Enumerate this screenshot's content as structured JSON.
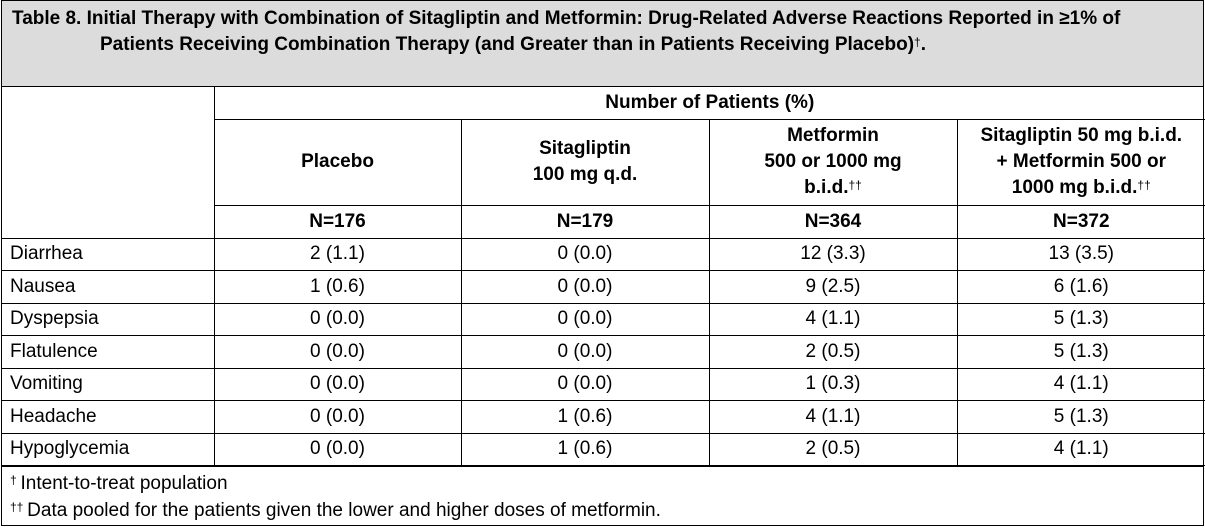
{
  "title": {
    "label": "Table 8.",
    "text": "Initial Therapy with Combination of Sitagliptin and Metformin: Drug-Related Adverse Reactions Reported in ≥1% of Patients Receiving Combination Therapy (and Greater than in Patients Receiving Placebo)",
    "mark": "†",
    "end": "."
  },
  "group_header": "Number of Patients (%)",
  "columns": [
    {
      "lines": [
        "Placebo"
      ],
      "n": "N=176"
    },
    {
      "lines": [
        "Sitagliptin",
        "100 mg q.d."
      ],
      "n": "N=179"
    },
    {
      "lines": [
        "Metformin",
        "500 or 1000 mg",
        "b.i.d."
      ],
      "mark": "††",
      "n": "N=364"
    },
    {
      "lines": [
        "Sitagliptin 50 mg b.i.d.",
        "+ Metformin 500 or",
        "1000 mg b.i.d."
      ],
      "mark": "††",
      "n": "N=372"
    }
  ],
  "rows": [
    [
      "Diarrhea",
      "2 (1.1)",
      "0 (0.0)",
      "12 (3.3)",
      "13 (3.5)"
    ],
    [
      "Nausea",
      "1 (0.6)",
      "0 (0.0)",
      "9 (2.5)",
      "6 (1.6)"
    ],
    [
      "Dyspepsia",
      "0 (0.0)",
      "0 (0.0)",
      "4 (1.1)",
      "5 (1.3)"
    ],
    [
      "Flatulence",
      "0 (0.0)",
      "0 (0.0)",
      "2 (0.5)",
      "5 (1.3)"
    ],
    [
      "Vomiting",
      "0 (0.0)",
      "0 (0.0)",
      "1 (0.3)",
      "4 (1.1)"
    ],
    [
      "Headache",
      "0 (0.0)",
      "1 (0.6)",
      "4 (1.1)",
      "5 (1.3)"
    ],
    [
      "Hypoglycemia",
      "0 (0.0)",
      "1 (0.6)",
      "2 (0.5)",
      "4 (1.1)"
    ]
  ],
  "footnotes": [
    {
      "mark": "†",
      "text": "Intent-to-treat population"
    },
    {
      "mark": "††",
      "text": "Data pooled for the patients given the lower and higher doses of metformin."
    }
  ]
}
